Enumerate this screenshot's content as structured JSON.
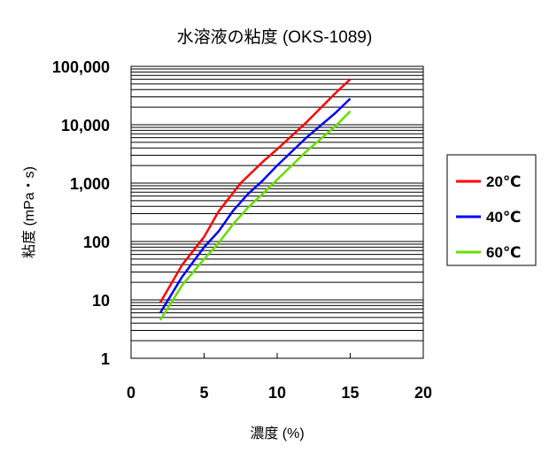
{
  "chart_data": {
    "type": "line",
    "title": "水溶液の粘度 (OKS-1089)",
    "xlabel": "濃度 (%)",
    "ylabel": "粘度 (mPa・s)",
    "xlim": [
      0,
      20
    ],
    "ylim": [
      1,
      100000
    ],
    "yscale": "log",
    "grid": "horizontal (major and minor)",
    "legend_position": "right",
    "x_ticks": [
      "0",
      "5",
      "10",
      "15",
      "20"
    ],
    "y_ticks": [
      "1",
      "10",
      "100",
      "1,000",
      "10,000",
      "100,000"
    ],
    "series": [
      {
        "name": "20℃",
        "color": "#ff0000",
        "x": [
          2,
          3.5,
          5,
          6,
          7.5,
          9,
          10,
          12,
          14,
          15
        ],
        "y": [
          9,
          40,
          120,
          330,
          1000,
          2300,
          3800,
          11000,
          35000,
          60000
        ]
      },
      {
        "name": "40℃",
        "color": "#0000ff",
        "x": [
          2,
          3.5,
          5,
          6,
          7,
          8,
          9,
          10,
          12,
          14,
          15
        ],
        "y": [
          6,
          25,
          80,
          150,
          340,
          650,
          1100,
          2000,
          6000,
          16000,
          28000
        ]
      },
      {
        "name": "60℃",
        "color": "#66dd00",
        "x": [
          2,
          3.5,
          5,
          6,
          7,
          8,
          9,
          10,
          12,
          14,
          15
        ],
        "y": [
          4.5,
          18,
          50,
          95,
          200,
          380,
          650,
          1150,
          3500,
          9500,
          17000
        ]
      }
    ]
  }
}
